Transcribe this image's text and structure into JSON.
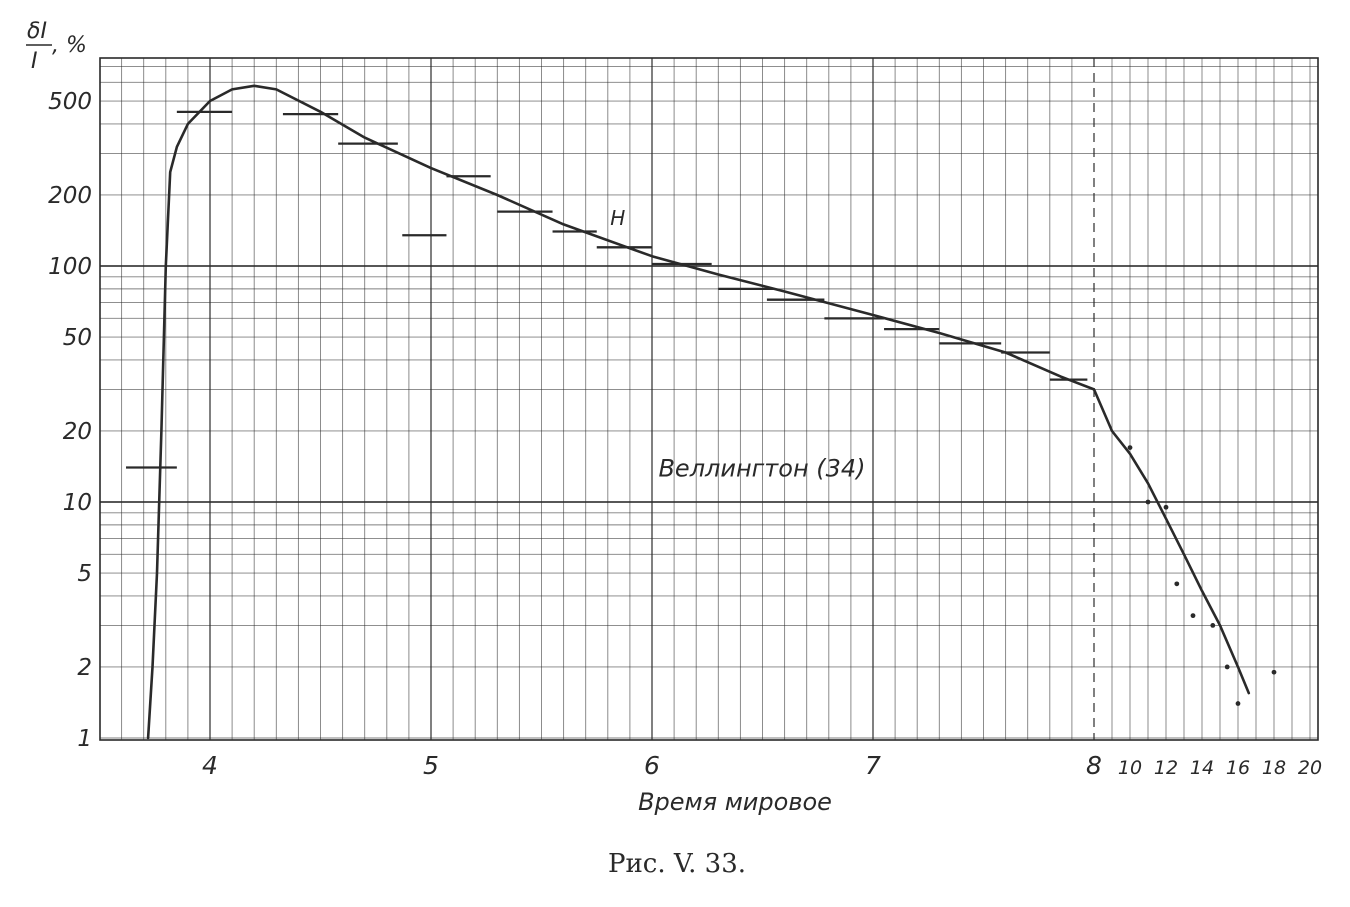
{
  "chart_data": {
    "type": "line",
    "title": "",
    "caption": "Рис. V. 33.",
    "xlabel": "Время мировое",
    "ylabel": "δI/I, %",
    "ylabel_parts": {
      "numerator": "δI",
      "denominator": "I",
      "unit": ", %"
    },
    "y_scale": "log",
    "ylim": [
      1,
      1000
    ],
    "y_ticks": [
      {
        "value": 1,
        "label": "1"
      },
      {
        "value": 2,
        "label": "2"
      },
      {
        "value": 5,
        "label": "5"
      },
      {
        "value": 10,
        "label": "10"
      },
      {
        "value": 20,
        "label": "20"
      },
      {
        "value": 50,
        "label": "50"
      },
      {
        "value": 100,
        "label": "100"
      },
      {
        "value": 200,
        "label": "200"
      },
      {
        "value": 500,
        "label": "500"
      }
    ],
    "x_scale": "broken",
    "x_segments": [
      {
        "range": [
          3.55,
          8
        ],
        "note": "linear hours"
      },
      {
        "range": [
          8,
          20
        ],
        "note": "compressed hours"
      }
    ],
    "x_ticks": [
      {
        "value": 4,
        "label": "4"
      },
      {
        "value": 5,
        "label": "5"
      },
      {
        "value": 6,
        "label": "6"
      },
      {
        "value": 7,
        "label": "7"
      },
      {
        "value": 8,
        "label": "8"
      },
      {
        "value": 10,
        "label": "10"
      },
      {
        "value": 12,
        "label": "12"
      },
      {
        "value": 14,
        "label": "14"
      },
      {
        "value": 16,
        "label": "16"
      },
      {
        "value": 18,
        "label": "18"
      },
      {
        "value": 20,
        "label": "20"
      }
    ],
    "grid": true,
    "divider_x": 8,
    "annotations": [
      {
        "text": "Веллингтон (34)",
        "x": 6.0,
        "y": 14
      },
      {
        "text": "H",
        "x": 5.8,
        "y": 160
      }
    ],
    "series": [
      {
        "kind": "curve",
        "points": [
          [
            3.72,
            1
          ],
          [
            3.74,
            2
          ],
          [
            3.76,
            5
          ],
          [
            3.78,
            20
          ],
          [
            3.8,
            100
          ],
          [
            3.82,
            250
          ],
          [
            3.85,
            320
          ],
          [
            3.9,
            400
          ],
          [
            4.0,
            500
          ],
          [
            4.1,
            560
          ],
          [
            4.2,
            580
          ],
          [
            4.3,
            560
          ],
          [
            4.5,
            450
          ],
          [
            4.7,
            350
          ],
          [
            5.0,
            260
          ],
          [
            5.3,
            200
          ],
          [
            5.6,
            150
          ],
          [
            6.0,
            110
          ],
          [
            6.3,
            92
          ],
          [
            6.6,
            78
          ],
          [
            7.0,
            62
          ],
          [
            7.3,
            52
          ],
          [
            7.6,
            43
          ],
          [
            7.85,
            34
          ],
          [
            8.0,
            30
          ],
          [
            9.0,
            20
          ],
          [
            10.0,
            16
          ],
          [
            11.0,
            12
          ],
          [
            12.0,
            8.5
          ],
          [
            13.0,
            6
          ],
          [
            14.0,
            4.2
          ],
          [
            15.0,
            3
          ],
          [
            16.0,
            2
          ],
          [
            16.6,
            1.55
          ]
        ]
      },
      {
        "kind": "intervals",
        "items": [
          {
            "x0": 3.62,
            "x1": 3.85,
            "y": 14
          },
          {
            "x0": 3.85,
            "x1": 4.1,
            "y": 450
          },
          {
            "x0": 4.33,
            "x1": 4.58,
            "y": 440
          },
          {
            "x0": 4.58,
            "x1": 4.85,
            "y": 330
          },
          {
            "x0": 4.87,
            "x1": 5.07,
            "y": 135
          },
          {
            "x0": 5.07,
            "x1": 5.27,
            "y": 240
          },
          {
            "x0": 5.3,
            "x1": 5.55,
            "y": 170
          },
          {
            "x0": 5.55,
            "x1": 5.75,
            "y": 140
          },
          {
            "x0": 5.75,
            "x1": 6.0,
            "y": 120
          },
          {
            "x0": 6.0,
            "x1": 6.27,
            "y": 102
          },
          {
            "x0": 6.3,
            "x1": 6.55,
            "y": 80
          },
          {
            "x0": 6.52,
            "x1": 6.78,
            "y": 72
          },
          {
            "x0": 6.78,
            "x1": 7.05,
            "y": 60
          },
          {
            "x0": 7.05,
            "x1": 7.3,
            "y": 54
          },
          {
            "x0": 7.3,
            "x1": 7.58,
            "y": 47
          },
          {
            "x0": 7.58,
            "x1": 7.8,
            "y": 43
          },
          {
            "x0": 7.8,
            "x1": 7.97,
            "y": 33
          }
        ]
      },
      {
        "kind": "points",
        "items": [
          [
            10.0,
            17
          ],
          [
            11.0,
            10
          ],
          [
            12.0,
            9.5
          ],
          [
            12.6,
            4.5
          ],
          [
            13.5,
            3.3
          ],
          [
            14.6,
            3.0
          ],
          [
            15.4,
            2.0
          ],
          [
            16.0,
            1.4
          ],
          [
            18.0,
            1.9
          ]
        ]
      }
    ]
  }
}
